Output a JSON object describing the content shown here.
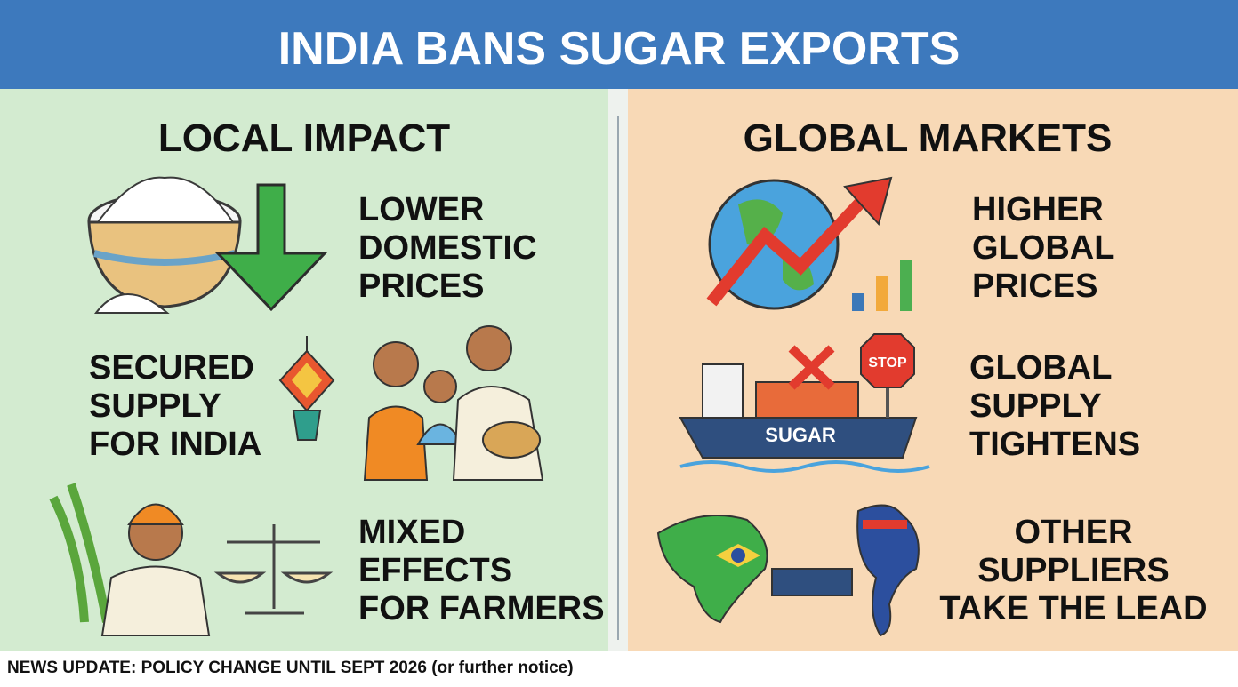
{
  "header": {
    "title": "INDIA BANS SUGAR EXPORTS"
  },
  "panels": [
    {
      "heading": "LOCAL IMPACT",
      "items": [
        {
          "lines": [
            "LOWER",
            "DOMESTIC",
            "PRICES"
          ]
        },
        {
          "lines": [
            "SECURED",
            "SUPPLY",
            "FOR INDIA"
          ]
        },
        {
          "lines": [
            "MIXED",
            "EFFECTS",
            "FOR FARMERS"
          ]
        }
      ]
    },
    {
      "heading": "GLOBAL MARKETS",
      "items": [
        {
          "lines": [
            "HIGHER",
            "GLOBAL",
            "PRICES"
          ]
        },
        {
          "lines": [
            "GLOBAL",
            "SUPPLY",
            "TIGHTENS"
          ]
        },
        {
          "lines": [
            "OTHER",
            "SUPPLIERS",
            "TAKE THE LEAD"
          ]
        }
      ]
    }
  ],
  "illustrations": {
    "ship_label": "SUGAR",
    "stop_sign": "STOP"
  },
  "footer": {
    "text": "NEWS UPDATE: POLICY CHANGE UNTIL SEPT 2026 (or further notice)"
  }
}
